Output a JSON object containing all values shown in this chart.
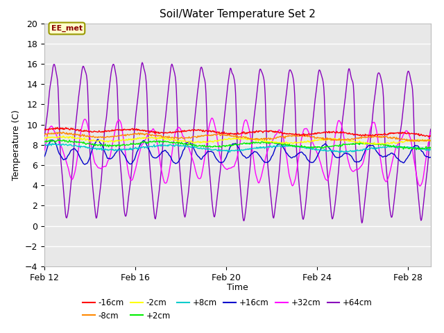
{
  "title": "Soil/Water Temperature Set 2",
  "xlabel": "Time",
  "ylabel": "Temperature (C)",
  "ylim": [
    -4,
    20
  ],
  "xlim": [
    0,
    17
  ],
  "yticks": [
    -4,
    -2,
    0,
    2,
    4,
    6,
    8,
    10,
    12,
    14,
    16,
    18,
    20
  ],
  "xtick_labels": [
    "Feb 12",
    "Feb 16",
    "Feb 20",
    "Feb 24",
    "Feb 28"
  ],
  "xtick_positions": [
    0,
    4,
    8,
    12,
    16
  ],
  "series": {
    "-16cm": {
      "color": "#ff0000"
    },
    "-8cm": {
      "color": "#ff8800"
    },
    "-2cm": {
      "color": "#ffff00"
    },
    "+2cm": {
      "color": "#00ee00"
    },
    "+8cm": {
      "color": "#00cccc"
    },
    "+16cm": {
      "color": "#0000cc"
    },
    "+32cm": {
      "color": "#ff00ff"
    },
    "+64cm": {
      "color": "#8800bb"
    }
  },
  "annotation_text": "EE_met",
  "fig_facecolor": "#ffffff",
  "plot_facecolor": "#e8e8e8"
}
